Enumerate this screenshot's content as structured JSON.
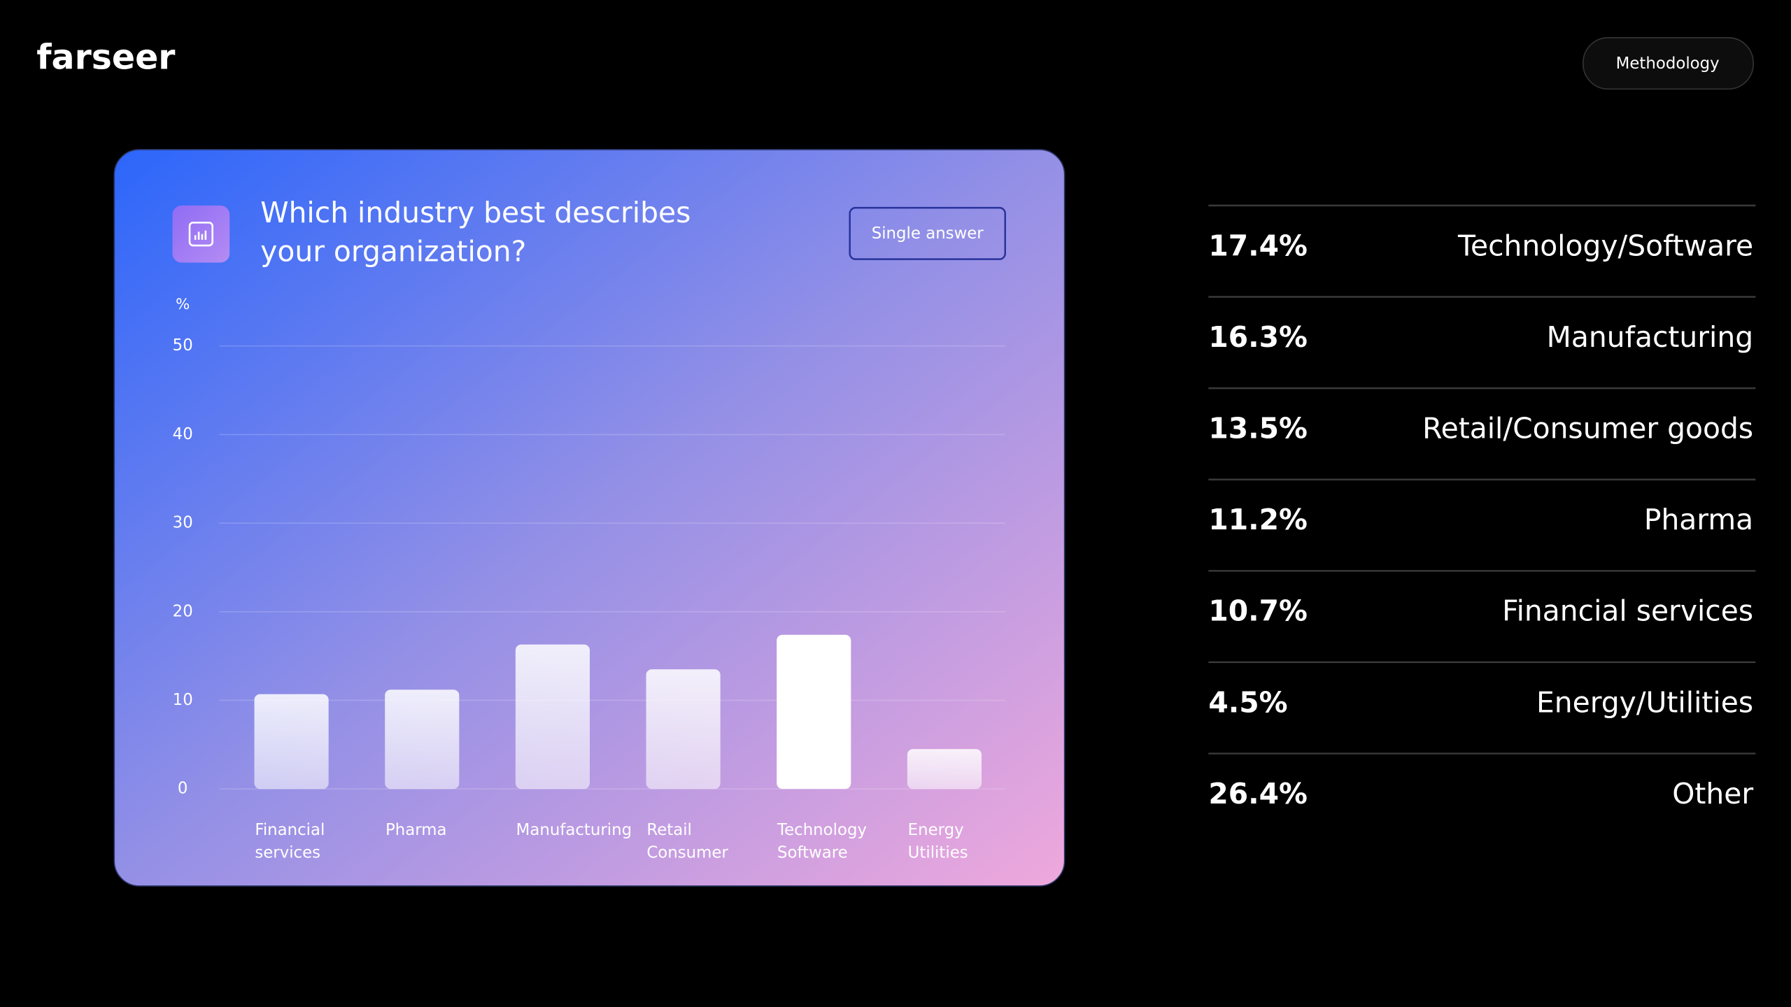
{
  "header": {
    "logo": "farseer",
    "button": "Methodology"
  },
  "chart_data": {
    "type": "bar",
    "title": "Which industry best describes your organization?",
    "tag": "Single answer",
    "y_label": "%",
    "categories": [
      "Financial services",
      "Pharma",
      "Manufacturing",
      "Retail Consumer",
      "Technology Software",
      "Energy Utilities"
    ],
    "values": [
      10.7,
      11.2,
      16.3,
      13.5,
      17.4,
      4.5
    ],
    "color": "#ffffff",
    "ylim": [
      0,
      50
    ],
    "yticks": [
      0,
      10,
      20,
      30,
      40,
      50
    ],
    "grid": true
  },
  "breakdown": [
    {
      "label": "17.4%",
      "name": "Technology/Software"
    },
    {
      "label": "16.3%",
      "name": "Manufacturing"
    },
    {
      "label": "13.5%",
      "name": "Retail/Consumer goods"
    },
    {
      "label": "11.2%",
      "name": "Pharma"
    },
    {
      "label": "10.7%",
      "name": "Financial services"
    },
    {
      "label": "4.5%",
      "name": "Energy/Utilities"
    },
    {
      "label": "26.4%",
      "name": "Other"
    }
  ]
}
